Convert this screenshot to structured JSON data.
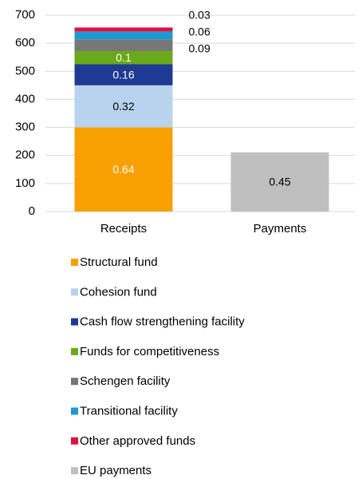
{
  "chart_data": {
    "type": "stacked_bar",
    "categories": [
      "Receipts",
      "Payments"
    ],
    "series": [
      {
        "name": "Structural fund",
        "color": "#f7a000",
        "values": [
          300,
          null
        ],
        "labels": [
          0.64,
          null
        ]
      },
      {
        "name": "Cohesion fund",
        "color": "#b9d3ee",
        "values": [
          150,
          null
        ],
        "labels": [
          0.32,
          null
        ]
      },
      {
        "name": "Cash flow strengthening facility",
        "color": "#1f3a93",
        "values": [
          75,
          null
        ],
        "labels": [
          0.16,
          null
        ]
      },
      {
        "name": "Funds for competitiveness",
        "color": "#6aaa1a",
        "values": [
          47,
          null
        ],
        "labels": [
          0.1,
          null
        ]
      },
      {
        "name": "Schengen facility",
        "color": "#777777",
        "values": [
          42,
          null
        ],
        "labels": [
          0.09,
          null
        ]
      },
      {
        "name": "Transitional facility",
        "color": "#1f97d4",
        "values": [
          28,
          null
        ],
        "labels": [
          0.06,
          null
        ]
      },
      {
        "name": "Other approved funds",
        "color": "#e0103e",
        "values": [
          14,
          null
        ],
        "labels": [
          0.03,
          null
        ]
      },
      {
        "name": "EU payments",
        "color": "#bfbfbf",
        "values": [
          null,
          211
        ],
        "labels": [
          null,
          0.45
        ]
      }
    ],
    "ylim": [
      0,
      700
    ],
    "yticks": [
      0,
      100,
      200,
      300,
      400,
      500,
      600,
      700
    ],
    "grid": true,
    "legend": "bottom"
  }
}
